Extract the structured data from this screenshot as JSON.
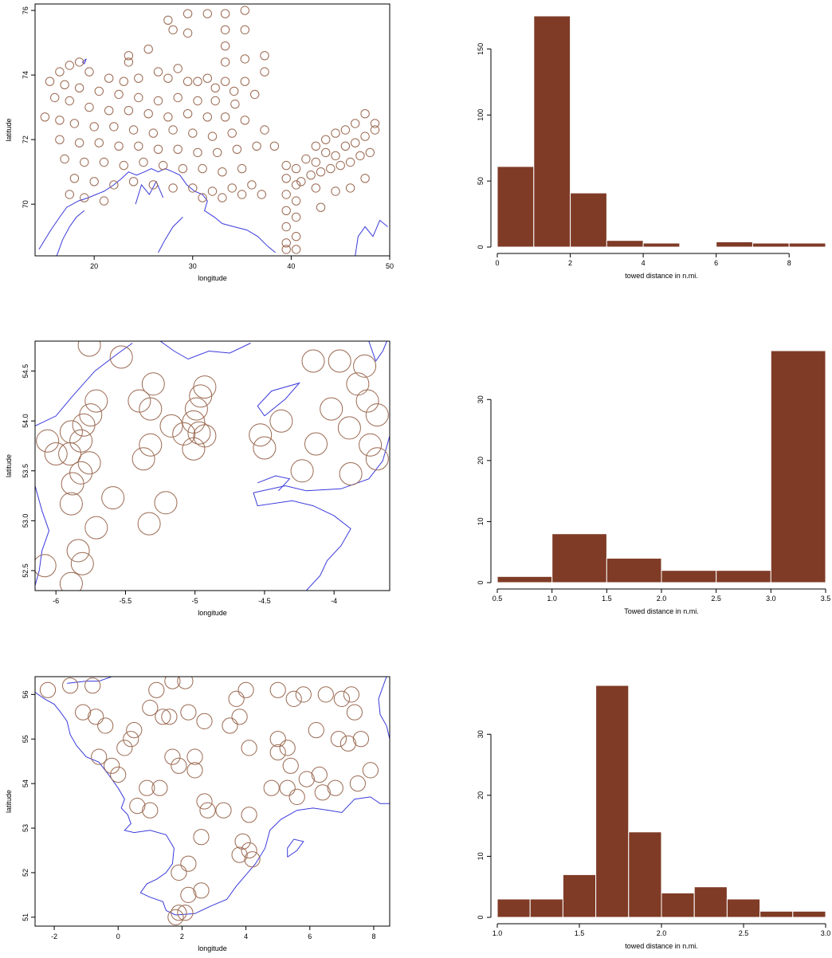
{
  "colors": {
    "station": "#9b6a52",
    "coast": "#3a3adc",
    "bar": "#7f3b26"
  },
  "chart_data": [
    {
      "type": "scatter",
      "xlabel": "longitude",
      "ylabel": "latitude",
      "xlim": [
        14,
        50
      ],
      "ylim": [
        68.4,
        76.2
      ],
      "xticks": [
        20,
        30,
        40,
        50
      ],
      "yticks": [
        70,
        72,
        74,
        76
      ],
      "grid": false,
      "marker_radius": 0.42,
      "points": [
        [
          33.3,
          75.9
        ],
        [
          35.3,
          76.0
        ],
        [
          29.5,
          75.9
        ],
        [
          31.5,
          75.9
        ],
        [
          27.5,
          75.7
        ],
        [
          28.0,
          75.4
        ],
        [
          29.5,
          75.3
        ],
        [
          33.3,
          75.4
        ],
        [
          35.3,
          75.4
        ],
        [
          25.5,
          74.8
        ],
        [
          23.5,
          74.6
        ],
        [
          23.5,
          74.4
        ],
        [
          28.5,
          74.2
        ],
        [
          33.3,
          74.9
        ],
        [
          37.3,
          74.6
        ],
        [
          35.3,
          74.5
        ],
        [
          33.3,
          74.4
        ],
        [
          37.3,
          74.1
        ],
        [
          18.5,
          74.4
        ],
        [
          17.5,
          74.3
        ],
        [
          16.5,
          74.1
        ],
        [
          19.5,
          74.1
        ],
        [
          21.5,
          73.9
        ],
        [
          23.0,
          73.8
        ],
        [
          24.5,
          73.9
        ],
        [
          26.5,
          74.1
        ],
        [
          27.5,
          73.9
        ],
        [
          29.5,
          73.8
        ],
        [
          30.5,
          73.8
        ],
        [
          31.5,
          73.9
        ],
        [
          33.3,
          73.8
        ],
        [
          35.3,
          73.8
        ],
        [
          34.2,
          73.5
        ],
        [
          32.3,
          73.6
        ],
        [
          36.3,
          73.4
        ],
        [
          15.5,
          73.8
        ],
        [
          17.0,
          73.7
        ],
        [
          18.5,
          73.6
        ],
        [
          20.5,
          73.5
        ],
        [
          22.5,
          73.4
        ],
        [
          24.5,
          73.3
        ],
        [
          26.5,
          73.2
        ],
        [
          28.5,
          73.3
        ],
        [
          30.5,
          73.2
        ],
        [
          32.3,
          73.2
        ],
        [
          34.3,
          73.1
        ],
        [
          16.0,
          73.3
        ],
        [
          17.5,
          73.2
        ],
        [
          19.5,
          73.0
        ],
        [
          21.5,
          72.9
        ],
        [
          23.5,
          72.9
        ],
        [
          25.5,
          72.8
        ],
        [
          27.5,
          72.7
        ],
        [
          29.5,
          72.8
        ],
        [
          31.5,
          72.7
        ],
        [
          33.3,
          72.7
        ],
        [
          35.3,
          72.6
        ],
        [
          15.0,
          72.7
        ],
        [
          16.5,
          72.6
        ],
        [
          18.0,
          72.5
        ],
        [
          20.0,
          72.4
        ],
        [
          22.0,
          72.4
        ],
        [
          24.0,
          72.3
        ],
        [
          26.0,
          72.2
        ],
        [
          28.0,
          72.3
        ],
        [
          30.0,
          72.2
        ],
        [
          32.0,
          72.1
        ],
        [
          34.0,
          72.2
        ],
        [
          37.3,
          72.3
        ],
        [
          16.5,
          72.0
        ],
        [
          18.5,
          71.9
        ],
        [
          20.5,
          71.9
        ],
        [
          22.5,
          71.8
        ],
        [
          24.5,
          71.8
        ],
        [
          26.5,
          71.7
        ],
        [
          28.5,
          71.7
        ],
        [
          30.5,
          71.6
        ],
        [
          32.5,
          71.6
        ],
        [
          34.5,
          71.7
        ],
        [
          36.5,
          71.8
        ],
        [
          38.3,
          71.8
        ],
        [
          17.0,
          71.4
        ],
        [
          19.0,
          71.3
        ],
        [
          21.0,
          71.3
        ],
        [
          23.0,
          71.2
        ],
        [
          25.0,
          71.3
        ],
        [
          27.0,
          71.2
        ],
        [
          29.0,
          71.1
        ],
        [
          31.0,
          71.1
        ],
        [
          33.0,
          71.0
        ],
        [
          35.0,
          71.1
        ],
        [
          18.0,
          70.8
        ],
        [
          20.0,
          70.7
        ],
        [
          22.0,
          70.6
        ],
        [
          24.0,
          70.7
        ],
        [
          26.0,
          70.6
        ],
        [
          28.0,
          70.5
        ],
        [
          30.0,
          70.5
        ],
        [
          32.0,
          70.4
        ],
        [
          34.0,
          70.5
        ],
        [
          36.0,
          70.6
        ],
        [
          17.5,
          70.3
        ],
        [
          19.0,
          70.2
        ],
        [
          21.0,
          70.1
        ],
        [
          31.0,
          70.2
        ],
        [
          33.0,
          70.2
        ],
        [
          35.0,
          70.3
        ],
        [
          37.0,
          70.3
        ],
        [
          39.5,
          71.2
        ],
        [
          40.5,
          71.1
        ],
        [
          41.5,
          71.4
        ],
        [
          42.5,
          71.3
        ],
        [
          43.5,
          71.6
        ],
        [
          44.5,
          71.5
        ],
        [
          45.5,
          71.8
        ],
        [
          46.5,
          71.9
        ],
        [
          47.5,
          72.1
        ],
        [
          48.5,
          72.3
        ],
        [
          41.0,
          70.7
        ],
        [
          42.0,
          70.9
        ],
        [
          43.0,
          71.0
        ],
        [
          44.0,
          71.1
        ],
        [
          45.0,
          71.2
        ],
        [
          46.0,
          71.3
        ],
        [
          47.0,
          71.5
        ],
        [
          48.0,
          71.6
        ],
        [
          43.5,
          72.0
        ],
        [
          44.5,
          72.2
        ],
        [
          45.5,
          72.3
        ],
        [
          46.5,
          72.5
        ],
        [
          47.5,
          72.8
        ],
        [
          48.5,
          72.5
        ],
        [
          42.5,
          71.8
        ],
        [
          44.5,
          70.4
        ],
        [
          46.0,
          70.5
        ],
        [
          47.5,
          70.8
        ],
        [
          39.5,
          70.8
        ],
        [
          40.5,
          70.6
        ],
        [
          39.5,
          70.3
        ],
        [
          40.5,
          70.1
        ],
        [
          39.5,
          69.8
        ],
        [
          40.5,
          69.6
        ],
        [
          39.5,
          69.3
        ],
        [
          40.5,
          69.0
        ],
        [
          39.5,
          68.8
        ],
        [
          40.5,
          68.6
        ],
        [
          39.5,
          68.6
        ],
        [
          42.5,
          70.5
        ],
        [
          43.0,
          69.9
        ]
      ]
    },
    {
      "type": "bar",
      "xlabel": "towed distance in n.mi.",
      "ylabel": "",
      "xlim": [
        0,
        9
      ],
      "ylim": [
        0,
        175
      ],
      "xticks": [
        0,
        2,
        4,
        6,
        8
      ],
      "yticks": [
        0,
        50,
        100,
        150
      ],
      "bins": [
        [
          0,
          1
        ],
        [
          1,
          2
        ],
        [
          2,
          3
        ],
        [
          3,
          4
        ],
        [
          4,
          5
        ],
        [
          5,
          6
        ],
        [
          6,
          7
        ],
        [
          7,
          8
        ],
        [
          8,
          9
        ]
      ],
      "values": [
        61,
        175,
        41,
        5,
        3,
        0,
        4,
        3,
        3
      ]
    },
    {
      "type": "scatter",
      "xlabel": "longitude",
      "ylabel": "latitude",
      "xlim": [
        -6.15,
        -3.6
      ],
      "ylim": [
        52.3,
        54.8
      ],
      "xticks": [
        -6.0,
        -5.5,
        -5.0,
        -4.5,
        -4.0
      ],
      "ytick_labels": [
        "52.5",
        "53.0",
        "53.5",
        "54.0",
        "54.5"
      ],
      "yticks": [
        52.5,
        53.0,
        53.5,
        54.0,
        54.5
      ],
      "grid": false,
      "marker_radius": 0.08,
      "points": [
        [
          -5.76,
          54.76
        ],
        [
          -5.53,
          54.64
        ],
        [
          -4.15,
          54.6
        ],
        [
          -3.96,
          54.6
        ],
        [
          -3.78,
          54.55
        ],
        [
          -5.71,
          54.2
        ],
        [
          -5.4,
          54.2
        ],
        [
          -5.3,
          54.37
        ],
        [
          -5.32,
          54.12
        ],
        [
          -4.93,
          54.34
        ],
        [
          -4.96,
          54.25
        ],
        [
          -4.99,
          54.12
        ],
        [
          -4.02,
          54.12
        ],
        [
          -3.83,
          54.37
        ],
        [
          -3.76,
          54.2
        ],
        [
          -3.69,
          54.06
        ],
        [
          -5.75,
          54.06
        ],
        [
          -5.8,
          53.96
        ],
        [
          -5.89,
          53.89
        ],
        [
          -6.06,
          53.8
        ],
        [
          -5.82,
          53.8
        ],
        [
          -5.9,
          53.67
        ],
        [
          -6.0,
          53.67
        ],
        [
          -5.17,
          53.95
        ],
        [
          -5.08,
          53.87
        ],
        [
          -5.01,
          53.99
        ],
        [
          -4.97,
          53.88
        ],
        [
          -4.93,
          53.85
        ],
        [
          -4.38,
          54.0
        ],
        [
          -4.53,
          53.86
        ],
        [
          -4.5,
          53.73
        ],
        [
          -4.13,
          53.77
        ],
        [
          -3.89,
          53.93
        ],
        [
          -3.74,
          53.76
        ],
        [
          -3.69,
          53.62
        ],
        [
          -5.32,
          53.76
        ],
        [
          -5.37,
          53.62
        ],
        [
          -5.01,
          53.72
        ],
        [
          -5.76,
          53.58
        ],
        [
          -5.82,
          53.48
        ],
        [
          -5.88,
          53.37
        ],
        [
          -4.23,
          53.5
        ],
        [
          -3.88,
          53.47
        ],
        [
          -5.59,
          53.23
        ],
        [
          -5.21,
          53.18
        ],
        [
          -5.89,
          53.17
        ],
        [
          -5.33,
          52.97
        ],
        [
          -5.71,
          52.93
        ],
        [
          -5.84,
          52.7
        ],
        [
          -5.81,
          52.57
        ],
        [
          -6.08,
          52.55
        ],
        [
          -5.89,
          52.37
        ]
      ]
    },
    {
      "type": "bar",
      "xlabel": "Towed distance in n.mi.",
      "ylabel": "",
      "xlim": [
        0.5,
        3.5
      ],
      "ylim": [
        0,
        38
      ],
      "xticks": [
        0.5,
        1.0,
        1.5,
        2.0,
        2.5,
        3.0,
        3.5
      ],
      "xtick_labels": [
        "0.5",
        "1.0",
        "1.5",
        "2.0",
        "2.5",
        "3.0",
        "3.5"
      ],
      "yticks": [
        0,
        10,
        20,
        30
      ],
      "bins": [
        [
          0.5,
          1.0
        ],
        [
          1.0,
          1.5
        ],
        [
          1.5,
          2.0
        ],
        [
          2.0,
          2.5
        ],
        [
          2.5,
          3.0
        ],
        [
          3.0,
          3.5
        ]
      ],
      "values": [
        1,
        8,
        4,
        2,
        2,
        38
      ]
    },
    {
      "type": "scatter",
      "xlabel": "longitude",
      "ylabel": "latitude",
      "xlim": [
        -2.6,
        8.5
      ],
      "ylim": [
        50.8,
        56.4
      ],
      "xticks": [
        -2,
        0,
        2,
        4,
        6,
        8
      ],
      "yticks": [
        51,
        52,
        53,
        54,
        55,
        56
      ],
      "grid": false,
      "marker_radius": 0.24,
      "points": [
        [
          -2.2,
          56.1
        ],
        [
          -1.5,
          56.2
        ],
        [
          -0.8,
          56.2
        ],
        [
          1.2,
          56.1
        ],
        [
          1.7,
          56.3
        ],
        [
          2.1,
          56.3
        ],
        [
          5.0,
          56.1
        ],
        [
          5.5,
          55.9
        ],
        [
          5.8,
          56.0
        ],
        [
          6.5,
          56.0
        ],
        [
          7.0,
          55.9
        ],
        [
          7.3,
          56.0
        ],
        [
          7.4,
          55.6
        ],
        [
          4.0,
          56.1
        ],
        [
          3.7,
          55.9
        ],
        [
          -1.1,
          55.6
        ],
        [
          -0.7,
          55.5
        ],
        [
          -0.4,
          55.3
        ],
        [
          0.5,
          55.2
        ],
        [
          1.0,
          55.7
        ],
        [
          1.4,
          55.5
        ],
        [
          1.6,
          55.5
        ],
        [
          2.2,
          55.6
        ],
        [
          3.5,
          55.3
        ],
        [
          2.7,
          55.4
        ],
        [
          3.8,
          55.5
        ],
        [
          0.4,
          55.0
        ],
        [
          0.2,
          54.8
        ],
        [
          -0.6,
          54.6
        ],
        [
          -0.2,
          54.4
        ],
        [
          0.0,
          54.2
        ],
        [
          1.9,
          54.4
        ],
        [
          2.4,
          54.6
        ],
        [
          1.7,
          54.6
        ],
        [
          2.4,
          54.3
        ],
        [
          4.1,
          54.8
        ],
        [
          5.0,
          55.0
        ],
        [
          5.3,
          54.8
        ],
        [
          5.0,
          54.7
        ],
        [
          5.4,
          54.4
        ],
        [
          6.2,
          55.2
        ],
        [
          6.9,
          55.0
        ],
        [
          7.2,
          54.9
        ],
        [
          7.6,
          55.0
        ],
        [
          0.9,
          53.9
        ],
        [
          1.3,
          53.9
        ],
        [
          0.6,
          53.5
        ],
        [
          1.0,
          53.4
        ],
        [
          2.7,
          53.6
        ],
        [
          2.8,
          53.4
        ],
        [
          3.3,
          53.4
        ],
        [
          4.1,
          53.3
        ],
        [
          4.8,
          53.9
        ],
        [
          5.3,
          53.9
        ],
        [
          5.6,
          53.7
        ],
        [
          5.9,
          54.1
        ],
        [
          6.4,
          53.8
        ],
        [
          6.8,
          53.9
        ],
        [
          6.3,
          54.2
        ],
        [
          7.9,
          54.3
        ],
        [
          7.5,
          54.0
        ],
        [
          2.6,
          52.8
        ],
        [
          3.9,
          52.7
        ],
        [
          4.1,
          52.5
        ],
        [
          4.2,
          52.3
        ],
        [
          3.8,
          52.4
        ],
        [
          1.9,
          52.0
        ],
        [
          2.2,
          52.2
        ],
        [
          2.2,
          51.5
        ],
        [
          2.6,
          51.6
        ],
        [
          1.9,
          51.1
        ],
        [
          1.8,
          51.0
        ],
        [
          2.1,
          51.1
        ]
      ]
    },
    {
      "type": "bar",
      "xlabel": "towed distance in n.mi.",
      "ylabel": "",
      "xlim": [
        1.0,
        3.0
      ],
      "ylim": [
        0,
        38
      ],
      "xticks": [
        1.0,
        1.5,
        2.0,
        2.5,
        3.0
      ],
      "xtick_labels": [
        "1.0",
        "1.5",
        "2.0",
        "2.5",
        "3.0"
      ],
      "yticks": [
        0,
        10,
        20,
        30
      ],
      "bins": [
        [
          1.0,
          1.2
        ],
        [
          1.2,
          1.4
        ],
        [
          1.4,
          1.6
        ],
        [
          1.6,
          1.8
        ],
        [
          1.8,
          2.0
        ],
        [
          2.0,
          2.2
        ],
        [
          2.2,
          2.4
        ],
        [
          2.4,
          2.6
        ],
        [
          2.6,
          2.8
        ],
        [
          2.8,
          3.0
        ]
      ],
      "values": [
        3,
        3,
        7,
        38,
        14,
        4,
        5,
        3,
        1,
        1
      ]
    }
  ]
}
